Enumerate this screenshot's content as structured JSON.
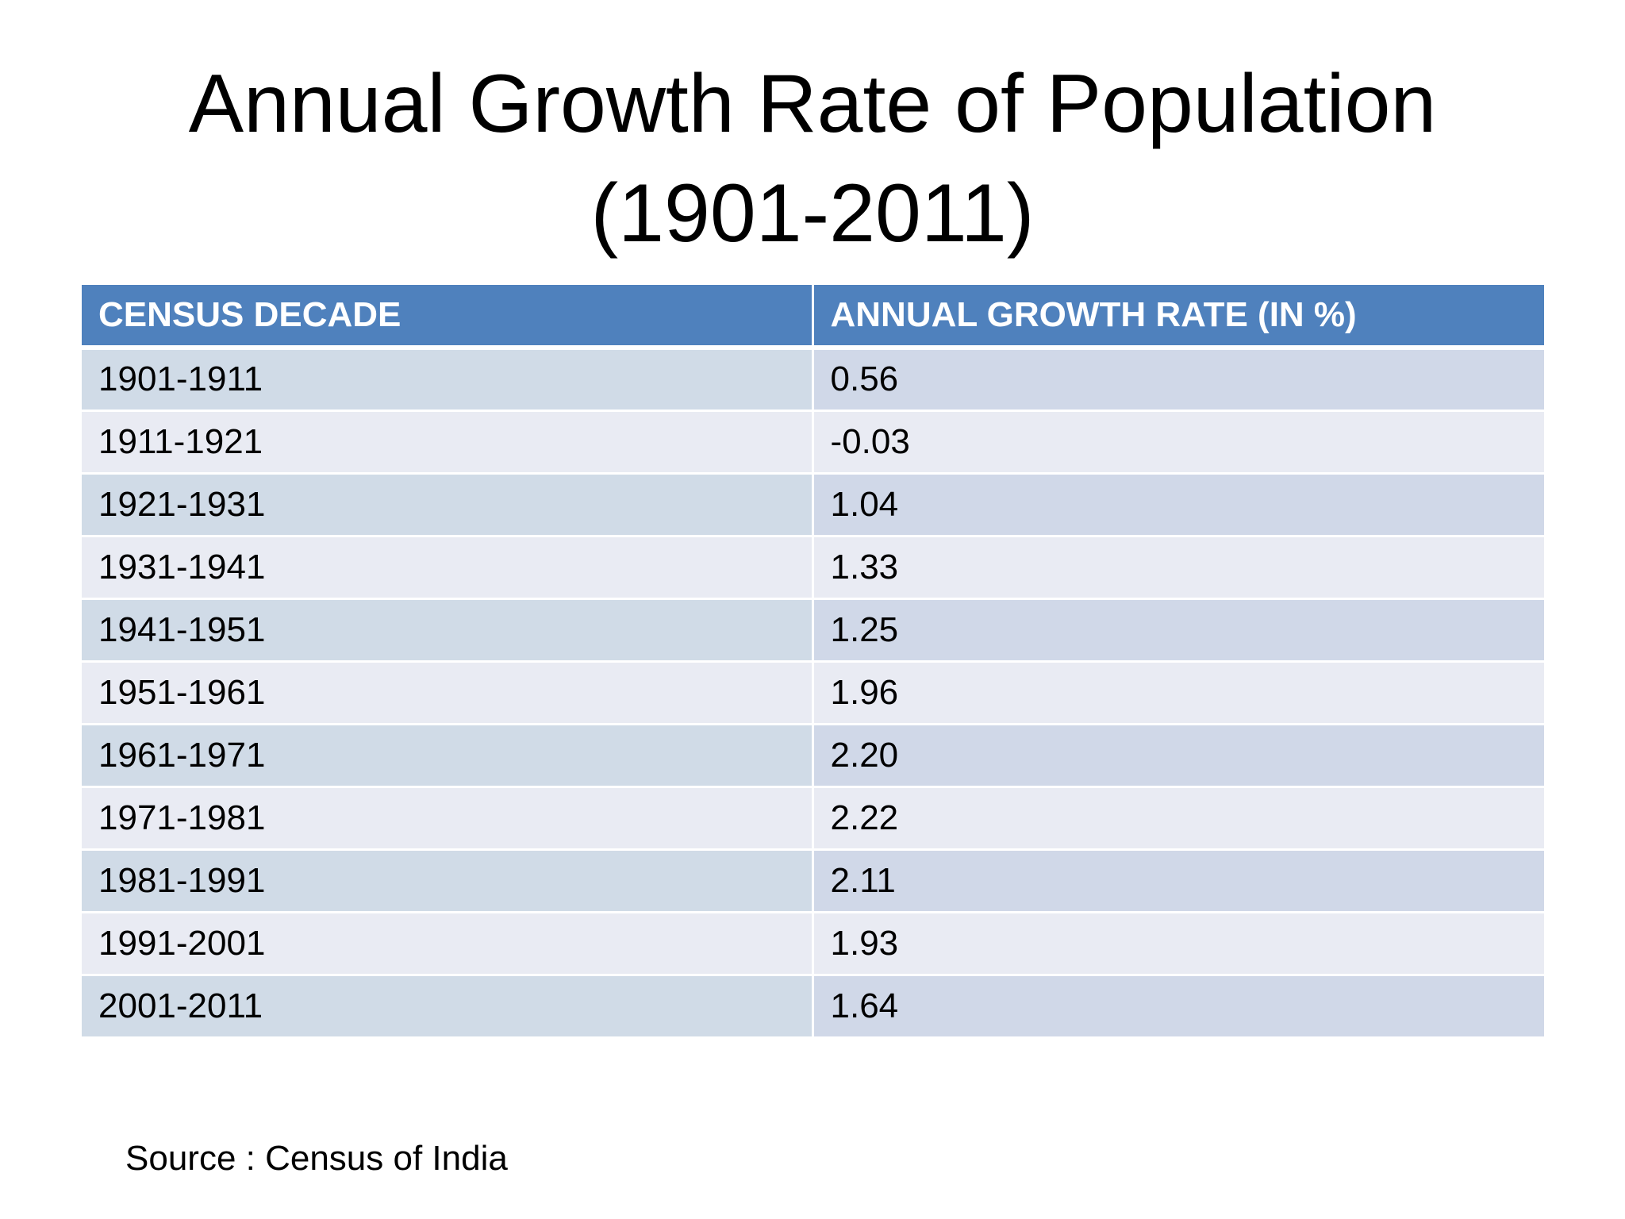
{
  "title": {
    "line1": "Annual Growth Rate of Population",
    "line2": "(1901-2011)"
  },
  "table": {
    "headers": [
      "CENSUS DECADE",
      "ANNUAL GROWTH RATE (IN %)"
    ],
    "rows": [
      [
        "1901-1911",
        "0.56"
      ],
      [
        "1911-1921",
        "-0.03"
      ],
      [
        "1921-1931",
        "1.04"
      ],
      [
        "1931-1941",
        "1.33"
      ],
      [
        "1941-1951",
        "1.25"
      ],
      [
        "1951-1961",
        "1.96"
      ],
      [
        "1961-1971",
        "2.20"
      ],
      [
        "1971-1981",
        "2.22"
      ],
      [
        "1981-1991",
        "2.11"
      ],
      [
        "1991-2001",
        "1.93"
      ],
      [
        "2001-2011",
        "1.64"
      ]
    ]
  },
  "source": "Source : Census of India",
  "colors": {
    "header_bg": "#4f81bd",
    "row_band_dark": "#d0d8e8",
    "row_band_light": "#e9ebf3"
  }
}
